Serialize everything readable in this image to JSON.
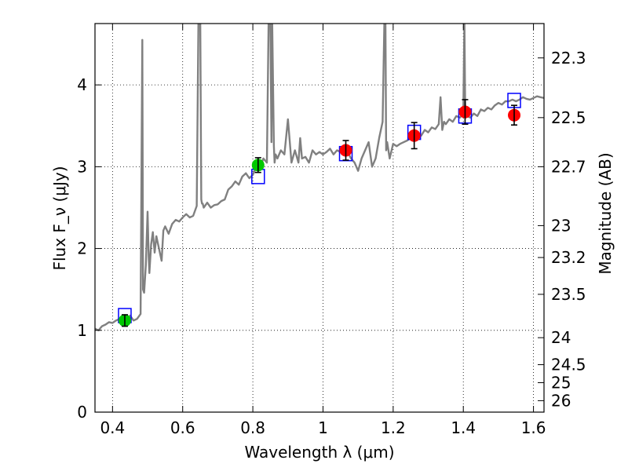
{
  "chart_data": {
    "type": "line",
    "xlabel": "Wavelength λ (μm)",
    "ylabel": "Flux F_ν (μJy)",
    "y2label": "Magnitude (AB)",
    "xlim": [
      0.35,
      1.63
    ],
    "ylim": [
      0,
      4.75
    ],
    "grid": true,
    "x_ticks": [
      0.4,
      0.6,
      0.8,
      1.0,
      1.2,
      1.4,
      1.6
    ],
    "x_tick_labels": [
      "0.4",
      "0.6",
      "0.8",
      "1",
      "1.2",
      "1.4",
      "1.6"
    ],
    "y_ticks": [
      0,
      1,
      2,
      3,
      4
    ],
    "y_tick_labels": [
      "0",
      "1",
      "2",
      "3",
      "4"
    ],
    "y2_ticks": [
      {
        "mag": "22.3",
        "flux": 4.33
      },
      {
        "mag": "22.5",
        "flux": 3.6
      },
      {
        "mag": "22.7",
        "flux": 3.0
      },
      {
        "mag": "23",
        "flux": 2.28
      },
      {
        "mag": "23.2",
        "flux": 1.89
      },
      {
        "mag": "23.5",
        "flux": 1.44
      },
      {
        "mag": "24",
        "flux": 0.91
      },
      {
        "mag": "24.5",
        "flux": 0.58
      },
      {
        "mag": "25",
        "flux": 0.36
      },
      {
        "mag": "26",
        "flux": 0.14
      }
    ],
    "model_spectrum": {
      "color": "#808080",
      "x": [
        0.35,
        0.36,
        0.37,
        0.38,
        0.39,
        0.4,
        0.41,
        0.42,
        0.43,
        0.44,
        0.45,
        0.46,
        0.47,
        0.48,
        0.485,
        0.487,
        0.49,
        0.495,
        0.5,
        0.503,
        0.505,
        0.51,
        0.515,
        0.52,
        0.525,
        0.53,
        0.54,
        0.545,
        0.55,
        0.56,
        0.57,
        0.58,
        0.59,
        0.6,
        0.61,
        0.62,
        0.63,
        0.64,
        0.645,
        0.65,
        0.653,
        0.655,
        0.657,
        0.66,
        0.67,
        0.68,
        0.69,
        0.7,
        0.71,
        0.72,
        0.73,
        0.74,
        0.75,
        0.76,
        0.77,
        0.78,
        0.79,
        0.8,
        0.81,
        0.82,
        0.83,
        0.84,
        0.845,
        0.85,
        0.853,
        0.855,
        0.86,
        0.862,
        0.865,
        0.87,
        0.88,
        0.89,
        0.9,
        0.91,
        0.92,
        0.93,
        0.935,
        0.94,
        0.95,
        0.96,
        0.97,
        0.98,
        0.99,
        1.0,
        1.01,
        1.02,
        1.03,
        1.04,
        1.05,
        1.06,
        1.07,
        1.08,
        1.09,
        1.1,
        1.11,
        1.12,
        1.13,
        1.14,
        1.15,
        1.16,
        1.17,
        1.175,
        1.178,
        1.18,
        1.183,
        1.19,
        1.2,
        1.21,
        1.22,
        1.23,
        1.24,
        1.25,
        1.26,
        1.27,
        1.28,
        1.29,
        1.3,
        1.31,
        1.32,
        1.33,
        1.335,
        1.34,
        1.345,
        1.35,
        1.36,
        1.37,
        1.38,
        1.39,
        1.4,
        1.403,
        1.405,
        1.407,
        1.41,
        1.42,
        1.43,
        1.44,
        1.45,
        1.46,
        1.47,
        1.48,
        1.49,
        1.5,
        1.51,
        1.52,
        1.53,
        1.54,
        1.55,
        1.56,
        1.57,
        1.58,
        1.59,
        1.6,
        1.61,
        1.62,
        1.63
      ],
      "y": [
        1.02,
        1.0,
        1.05,
        1.07,
        1.1,
        1.09,
        1.12,
        1.14,
        1.1,
        1.13,
        1.18,
        1.12,
        1.14,
        1.2,
        4.55,
        1.5,
        1.46,
        1.8,
        2.45,
        1.9,
        1.7,
        2.05,
        2.2,
        1.95,
        2.15,
        2.05,
        1.85,
        2.22,
        2.27,
        2.18,
        2.3,
        2.35,
        2.33,
        2.38,
        2.42,
        2.38,
        2.4,
        2.52,
        4.8,
        4.8,
        2.6,
        2.55,
        2.55,
        2.5,
        2.56,
        2.5,
        2.53,
        2.54,
        2.58,
        2.6,
        2.72,
        2.76,
        2.82,
        2.78,
        2.88,
        2.92,
        2.86,
        2.9,
        3.0,
        2.98,
        3.1,
        3.05,
        4.8,
        4.8,
        3.3,
        4.8,
        3.25,
        3.05,
        3.15,
        3.1,
        3.2,
        3.15,
        3.58,
        3.05,
        3.2,
        3.05,
        3.35,
        3.1,
        3.12,
        3.05,
        3.2,
        3.15,
        3.18,
        3.15,
        3.18,
        3.22,
        3.15,
        3.2,
        3.18,
        3.2,
        3.18,
        3.1,
        3.05,
        2.95,
        3.1,
        3.2,
        3.3,
        3.0,
        3.1,
        3.35,
        3.55,
        4.8,
        4.8,
        3.2,
        3.3,
        3.1,
        3.28,
        3.25,
        3.28,
        3.3,
        3.32,
        3.35,
        3.38,
        3.4,
        3.38,
        3.45,
        3.42,
        3.48,
        3.46,
        3.52,
        3.85,
        3.45,
        3.55,
        3.52,
        3.58,
        3.55,
        3.62,
        3.6,
        3.65,
        4.8,
        3.8,
        3.6,
        3.62,
        3.6,
        3.65,
        3.62,
        3.7,
        3.68,
        3.72,
        3.7,
        3.75,
        3.78,
        3.76,
        3.8,
        3.8,
        3.82,
        3.8,
        3.82,
        3.85,
        3.83,
        3.82,
        3.84,
        3.86,
        3.85,
        3.84
      ]
    },
    "photometry_green": {
      "color": "#00c800",
      "points": [
        {
          "x": 0.435,
          "y": 1.12,
          "err": 0.07
        },
        {
          "x": 0.815,
          "y": 3.02,
          "err": 0.09
        }
      ]
    },
    "photometry_red": {
      "color": "#ff0000",
      "points": [
        {
          "x": 1.065,
          "y": 3.2,
          "err": 0.12
        },
        {
          "x": 1.26,
          "y": 3.38,
          "err": 0.16
        },
        {
          "x": 1.405,
          "y": 3.67,
          "err": 0.15
        },
        {
          "x": 1.545,
          "y": 3.63,
          "err": 0.12
        }
      ]
    },
    "model_photometry": {
      "color": "#0000ff",
      "points": [
        {
          "x": 0.435,
          "y": 1.18
        },
        {
          "x": 0.815,
          "y": 2.88
        },
        {
          "x": 1.065,
          "y": 3.16
        },
        {
          "x": 1.26,
          "y": 3.42
        },
        {
          "x": 1.405,
          "y": 3.62
        },
        {
          "x": 1.545,
          "y": 3.81
        }
      ]
    }
  }
}
